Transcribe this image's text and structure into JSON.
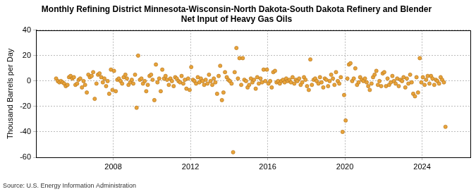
{
  "chart_data": {
    "type": "scatter",
    "title": "Monthly Refining District Minnesota-Wisconsin-North Dakota-South Dakota Refinery and Blender Net Input of Heavy Gas Oils",
    "y_label": "Thousand Barrels per Day",
    "source": "Source: U.S. Energy Information Administration",
    "color": "#e8a33a",
    "marker": "circle",
    "grid": true,
    "xlim": [
      2004,
      2026.5
    ],
    "xticks": [
      2008,
      2012,
      2016,
      2020,
      2024
    ],
    "ylim": [
      -60,
      40
    ],
    "yticks": [
      -60,
      -40,
      -20,
      0,
      20,
      40
    ],
    "x": [
      2005.04,
      2005.13,
      2005.21,
      2005.29,
      2005.38,
      2005.46,
      2005.54,
      2005.63,
      2005.71,
      2005.79,
      2005.88,
      2005.96,
      2006.04,
      2006.13,
      2006.21,
      2006.29,
      2006.38,
      2006.46,
      2006.54,
      2006.63,
      2006.71,
      2006.79,
      2006.88,
      2006.96,
      2007.04,
      2007.13,
      2007.21,
      2007.29,
      2007.38,
      2007.46,
      2007.54,
      2007.63,
      2007.71,
      2007.79,
      2007.88,
      2007.96,
      2008.04,
      2008.13,
      2008.21,
      2008.29,
      2008.38,
      2008.46,
      2008.54,
      2008.63,
      2008.71,
      2008.79,
      2008.88,
      2008.96,
      2009.04,
      2009.13,
      2009.21,
      2009.29,
      2009.38,
      2009.46,
      2009.54,
      2009.63,
      2009.71,
      2009.79,
      2009.88,
      2009.96,
      2010.04,
      2010.13,
      2010.21,
      2010.29,
      2010.38,
      2010.46,
      2010.54,
      2010.63,
      2010.71,
      2010.79,
      2010.88,
      2010.96,
      2011.04,
      2011.13,
      2011.21,
      2011.29,
      2011.38,
      2011.46,
      2011.54,
      2011.63,
      2011.71,
      2011.79,
      2011.88,
      2011.96,
      2012.04,
      2012.13,
      2012.21,
      2012.29,
      2012.38,
      2012.46,
      2012.54,
      2012.63,
      2012.71,
      2012.79,
      2012.88,
      2012.96,
      2013.04,
      2013.13,
      2013.21,
      2013.29,
      2013.38,
      2013.46,
      2013.54,
      2013.63,
      2013.71,
      2013.79,
      2013.88,
      2013.96,
      2014.04,
      2014.13,
      2014.21,
      2014.29,
      2014.38,
      2014.46,
      2014.54,
      2014.63,
      2014.71,
      2014.79,
      2014.88,
      2014.96,
      2015.04,
      2015.13,
      2015.21,
      2015.29,
      2015.38,
      2015.46,
      2015.54,
      2015.63,
      2015.71,
      2015.79,
      2015.88,
      2015.96,
      2016.04,
      2016.13,
      2016.21,
      2016.29,
      2016.38,
      2016.46,
      2016.54,
      2016.63,
      2016.71,
      2016.79,
      2016.88,
      2016.96,
      2017.04,
      2017.13,
      2017.21,
      2017.29,
      2017.38,
      2017.46,
      2017.54,
      2017.63,
      2017.71,
      2017.79,
      2017.88,
      2017.96,
      2018.04,
      2018.13,
      2018.21,
      2018.29,
      2018.38,
      2018.46,
      2018.54,
      2018.63,
      2018.71,
      2018.79,
      2018.88,
      2018.96,
      2019.04,
      2019.13,
      2019.21,
      2019.29,
      2019.38,
      2019.46,
      2019.54,
      2019.63,
      2019.71,
      2019.79,
      2019.88,
      2019.96,
      2020.04,
      2020.13,
      2020.21,
      2020.29,
      2020.38,
      2020.46,
      2020.54,
      2020.63,
      2020.71,
      2020.79,
      2020.88,
      2020.96,
      2021.04,
      2021.13,
      2021.21,
      2021.29,
      2021.38,
      2021.46,
      2021.54,
      2021.63,
      2021.71,
      2021.79,
      2021.88,
      2021.96,
      2022.04,
      2022.13,
      2022.21,
      2022.29,
      2022.38,
      2022.46,
      2022.54,
      2022.63,
      2022.71,
      2022.79,
      2022.88,
      2022.96,
      2023.04,
      2023.13,
      2023.21,
      2023.29,
      2023.38,
      2023.46,
      2023.54,
      2023.63,
      2023.71,
      2023.79,
      2023.88,
      2023.96,
      2024.04,
      2024.13,
      2024.21,
      2024.29,
      2024.38,
      2024.46,
      2024.54,
      2024.63,
      2024.71,
      2024.79,
      2024.88,
      2024.96,
      2025.04,
      2025.13,
      2025.21
    ],
    "values": [
      2,
      0,
      -1,
      0,
      -1,
      -2,
      -4,
      -3,
      3,
      4,
      2,
      3,
      -3,
      -2,
      1,
      2,
      -5,
      0,
      -3,
      -9,
      5,
      3,
      4,
      7,
      -14,
      -2,
      5,
      6,
      3,
      -1,
      2,
      -4,
      0,
      -10,
      9,
      -7,
      8,
      -8,
      1,
      2,
      0,
      -2,
      3,
      5,
      2,
      -3,
      -1,
      1,
      -2,
      5,
      -21,
      20,
      1,
      2,
      -2,
      0,
      -8,
      -3,
      4,
      5,
      1,
      -15,
      13,
      -1,
      2,
      -8,
      9,
      2,
      4,
      1,
      -3,
      2,
      0,
      -4,
      3,
      2,
      0,
      -1,
      4,
      -2,
      1,
      -6,
      2,
      -7,
      11,
      1,
      0,
      -2,
      3,
      -1,
      2,
      0,
      -3,
      1,
      -2,
      5,
      0,
      -3,
      2,
      -1,
      -10,
      4,
      12,
      -15,
      -9,
      7,
      3,
      1,
      0,
      -2,
      -56,
      7,
      26,
      2,
      18,
      -3,
      18,
      1,
      0,
      -5,
      -3,
      2,
      -1,
      1,
      -6,
      3,
      -2,
      2,
      -1,
      9,
      0,
      9,
      -2,
      0,
      -5,
      7,
      8,
      -1,
      0,
      -2,
      0,
      1,
      -1,
      2,
      0,
      1,
      -1,
      3,
      -2,
      1,
      0,
      2,
      -3,
      -1,
      3,
      1,
      -4,
      -7,
      17,
      -3,
      1,
      2,
      0,
      -2,
      3,
      -1,
      -5,
      2,
      1,
      -4,
      0,
      5,
      2,
      -3,
      7,
      0,
      -2,
      3,
      -40,
      -11,
      -31,
      2,
      13,
      14,
      0,
      2,
      10,
      -3,
      -1,
      3,
      1,
      0,
      2,
      -1,
      -4,
      -7,
      -2,
      3,
      5,
      8,
      -3,
      0,
      -4,
      6,
      7,
      -4,
      2,
      -3,
      -1,
      4,
      0,
      -2,
      2,
      -4,
      1,
      0,
      3,
      -5,
      2,
      -2,
      5,
      -1,
      -10,
      -12,
      3,
      -9,
      18,
      -1,
      3,
      -3,
      1,
      4,
      -2,
      4,
      2,
      -3,
      1,
      0,
      -2,
      3,
      1,
      -1,
      -36
    ]
  }
}
